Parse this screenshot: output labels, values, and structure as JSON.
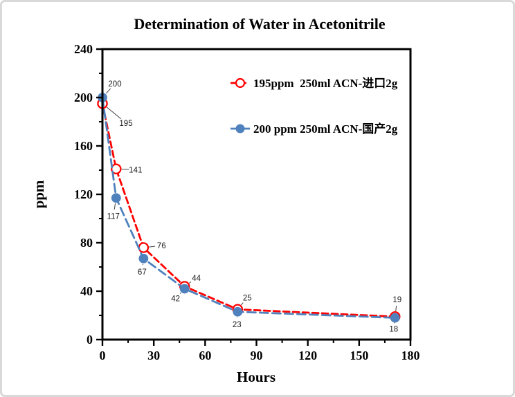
{
  "page": {
    "background": "#ffffff",
    "border_color": "#d9d9d9"
  },
  "chart_data": {
    "type": "line",
    "title": "Determination of Water in Acetonitrile",
    "xlabel": "Hours",
    "ylabel": "ppm",
    "xlim": [
      0,
      180
    ],
    "ylim": [
      0,
      240
    ],
    "x_major_ticks": [
      0,
      30,
      60,
      90,
      120,
      150,
      180
    ],
    "x_minor_ticks": [
      15,
      45,
      75,
      105,
      135,
      165
    ],
    "y_major_ticks": [
      0,
      40,
      80,
      120,
      160,
      200,
      240
    ],
    "y_minor_ticks": [
      20,
      60,
      100,
      140,
      180,
      220
    ],
    "grid": false,
    "frame": true,
    "legend_position": "inside-upper-right",
    "axis_color": "#000000",
    "leader_line_color": "#404040",
    "series": [
      {
        "name": "195ppm  250ml ACN-进口2g",
        "color": "#ff0000",
        "marker": "open-circle",
        "line_style": "dashed",
        "x": [
          0,
          8,
          24,
          48,
          79,
          171
        ],
        "values": [
          195,
          141,
          76,
          44,
          25,
          19
        ],
        "point_labels": [
          "195",
          "141",
          "76",
          "44",
          "25",
          "19"
        ],
        "label_offsets": [
          [
            34,
            28
          ],
          [
            28,
            1
          ],
          [
            26,
            -3
          ],
          [
            17,
            -12
          ],
          [
            14,
            -17
          ],
          [
            3,
            -25
          ]
        ]
      },
      {
        "name": "200 pm 250ml ACN",
        "color": "#4f81bd",
        "marker": "filled-circle",
        "line_style": "dashed",
        "x": [
          0,
          8,
          24,
          48,
          79,
          171
        ],
        "values": [
          200,
          117,
          67,
          42,
          23,
          18
        ],
        "point_labels": [
          "200",
          "117",
          "67",
          "42",
          "23",
          "18"
        ],
        "label_offsets": [
          [
            18,
            -20
          ],
          [
            -4,
            26
          ],
          [
            -2,
            19
          ],
          [
            -13,
            14
          ],
          [
            -1,
            18
          ],
          [
            -2,
            16
          ]
        ]
      }
    ]
  }
}
